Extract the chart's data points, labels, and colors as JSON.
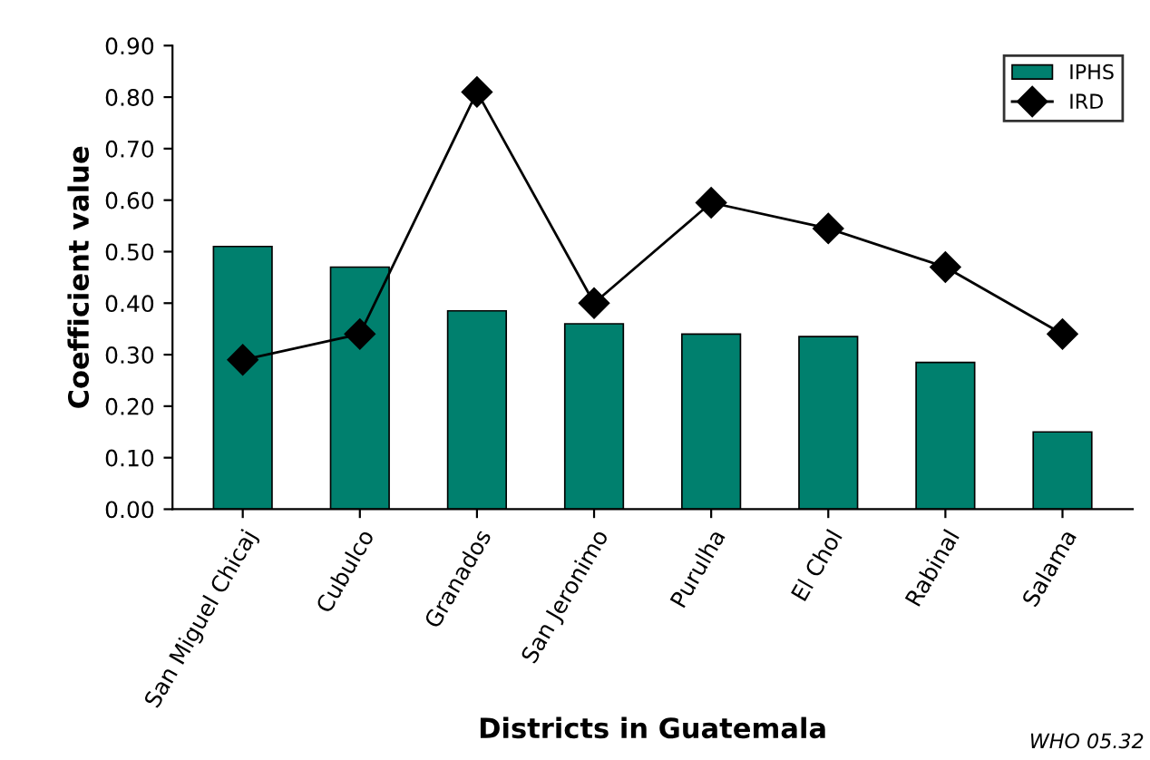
{
  "chart_data": {
    "type": "bar",
    "xlabel": "Districts in Guatemala",
    "ylabel": "Coefficient value",
    "categories": [
      "San Miguel Chicaj",
      "Cubulco",
      "Granados",
      "San Jeronimo",
      "Purulha",
      "El Chol",
      "Rabinal",
      "Salama"
    ],
    "series": [
      {
        "name": "IPHS",
        "color": "#00806e",
        "values": [
          0.51,
          0.47,
          0.385,
          0.36,
          0.34,
          0.335,
          0.285,
          0.15
        ]
      },
      {
        "name": "IRD",
        "type": "line",
        "color": "#000000",
        "marker": "diamond",
        "values": [
          0.29,
          0.34,
          0.81,
          0.4,
          0.595,
          0.545,
          0.47,
          0.34
        ]
      }
    ],
    "ylim": [
      0,
      0.9
    ],
    "yticks": [
      {
        "value": 0,
        "label": "0.00"
      },
      {
        "value": 0.1,
        "label": "0.10"
      },
      {
        "value": 0.2,
        "label": "0.20"
      },
      {
        "value": 0.3,
        "label": "0.30"
      },
      {
        "value": 0.4,
        "label": "0.40"
      },
      {
        "value": 0.5,
        "label": "0.50"
      },
      {
        "value": 0.6,
        "label": "0.60"
      },
      {
        "value": 0.7,
        "label": "0.70"
      },
      {
        "value": 0.8,
        "label": "0.80"
      },
      {
        "value": 0.9,
        "label": "0.90"
      }
    ],
    "grid": false,
    "legend": "top right",
    "annotations": [
      "WHO 05.32"
    ]
  }
}
